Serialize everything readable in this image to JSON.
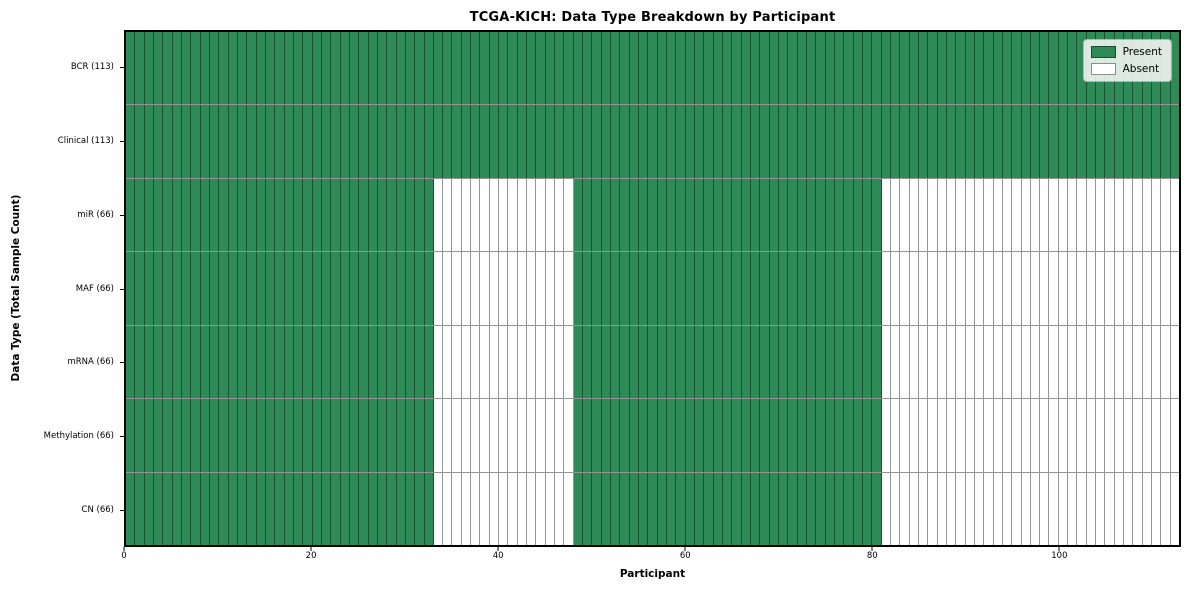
{
  "chart_data": {
    "type": "heatmap",
    "title": "TCGA-KICH: Data Type Breakdown by Participant",
    "xlabel": "Participant",
    "ylabel": "Data Type (Total Sample Count)",
    "n_participants": 113,
    "x_ticks": [
      0,
      20,
      40,
      60,
      80,
      100
    ],
    "rows": [
      {
        "label": "BCR (113)",
        "total": 113,
        "present_ranges": [
          [
            0,
            113
          ]
        ]
      },
      {
        "label": "Clinical (113)",
        "total": 113,
        "present_ranges": [
          [
            0,
            113
          ]
        ]
      },
      {
        "label": "miR (66)",
        "total": 66,
        "present_ranges": [
          [
            0,
            33
          ],
          [
            48,
            81
          ]
        ]
      },
      {
        "label": "MAF (66)",
        "total": 66,
        "present_ranges": [
          [
            0,
            33
          ],
          [
            48,
            81
          ]
        ]
      },
      {
        "label": "mRNA (66)",
        "total": 66,
        "present_ranges": [
          [
            0,
            33
          ],
          [
            48,
            81
          ]
        ]
      },
      {
        "label": "Methylation (66)",
        "total": 66,
        "present_ranges": [
          [
            0,
            33
          ],
          [
            48,
            81
          ]
        ]
      },
      {
        "label": "CN (66)",
        "total": 66,
        "present_ranges": [
          [
            0,
            33
          ],
          [
            48,
            81
          ]
        ]
      }
    ],
    "legend": [
      {
        "label": "Present",
        "color": "#2e8b57"
      },
      {
        "label": "Absent",
        "color": "#ffffff"
      }
    ],
    "colors": {
      "present": "#2e8b57",
      "absent": "#ffffff",
      "cell_border": "rgba(0,0,0,0.42)",
      "spine": "#000000"
    },
    "legend_position": "upper right",
    "grid": "cell-borders"
  }
}
